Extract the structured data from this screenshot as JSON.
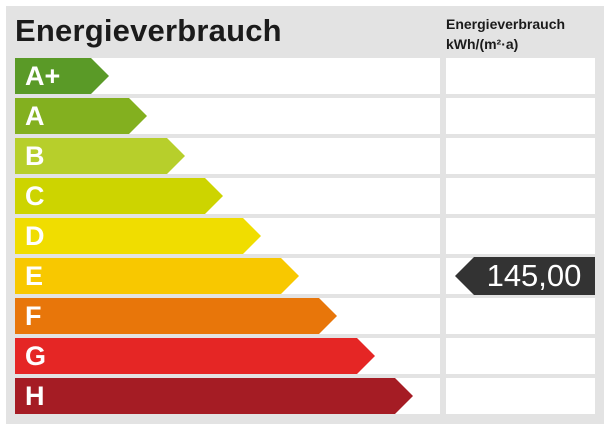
{
  "header": {
    "title": "Energieverbrauch",
    "unit_line1": "Energieverbrauch",
    "unit_line2": "kWh/(m²·a)"
  },
  "classes": [
    {
      "label": "A+",
      "color": "#5a9a27"
    },
    {
      "label": "A",
      "color": "#83b01f"
    },
    {
      "label": "B",
      "color": "#b7cf2b"
    },
    {
      "label": "C",
      "color": "#cdd400"
    },
    {
      "label": "D",
      "color": "#f0dd00"
    },
    {
      "label": "E",
      "color": "#f8c800"
    },
    {
      "label": "F",
      "color": "#e8760a"
    },
    {
      "label": "G",
      "color": "#e52625"
    },
    {
      "label": "H",
      "color": "#a51c24"
    }
  ],
  "consumption": {
    "value": "145,00",
    "class": "E",
    "marker_color": "#333333"
  }
}
